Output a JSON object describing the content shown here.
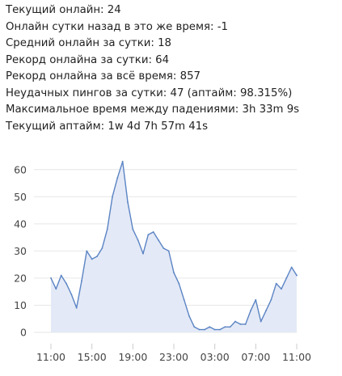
{
  "stats": [
    "Текущий онлайн: 24",
    "Онлайн сутки назад в это же время: -1",
    "Средний онлайн за сутки: 18",
    "Рекорд онлайна за сутки: 64",
    "Рекорд онлайна за всё время: 857",
    "Неудачных пингов за сутки: 47 (аптайм: 98.315%)",
    "Максимальное время между падениями: 3h 33m 9s",
    "Текущий аптайм: 1w 4d 7h 57m 41s"
  ],
  "chart_data": {
    "type": "area",
    "title": "",
    "xlabel": "",
    "ylabel": "",
    "x_ticks": [
      "11:00",
      "15:00",
      "19:00",
      "23:00",
      "03:00",
      "07:00",
      "11:00"
    ],
    "y_ticks": [
      "0",
      "10",
      "20",
      "30",
      "40",
      "50",
      "60"
    ],
    "ylim": [
      0,
      65
    ],
    "grid": "horizontal",
    "line_color": "#5b84c4",
    "fill_color": "#e3e9f6",
    "x": [
      "11:00",
      "11:30",
      "12:00",
      "12:30",
      "13:00",
      "13:30",
      "14:00",
      "14:30",
      "15:00",
      "15:30",
      "16:00",
      "16:30",
      "17:00",
      "17:30",
      "18:00",
      "18:30",
      "19:00",
      "19:30",
      "20:00",
      "20:30",
      "21:00",
      "21:30",
      "22:00",
      "22:30",
      "23:00",
      "23:30",
      "00:00",
      "00:30",
      "01:00",
      "01:30",
      "02:00",
      "02:30",
      "03:00",
      "03:30",
      "04:00",
      "04:30",
      "05:00",
      "05:30",
      "06:00",
      "06:30",
      "07:00",
      "07:30",
      "08:00",
      "08:30",
      "09:00",
      "09:30",
      "10:00",
      "10:30",
      "11:00"
    ],
    "series": [
      {
        "values": [
          20,
          16,
          21,
          18,
          14,
          9,
          19,
          30,
          27,
          28,
          31,
          38,
          50,
          57,
          63,
          48,
          38,
          34,
          29,
          36,
          37,
          34,
          31,
          30,
          22,
          18,
          12,
          6,
          2,
          1,
          1,
          2,
          1,
          1,
          2,
          2,
          4,
          3,
          3,
          8,
          12,
          4,
          8,
          12,
          18,
          16,
          20,
          24,
          21
        ]
      }
    ]
  }
}
